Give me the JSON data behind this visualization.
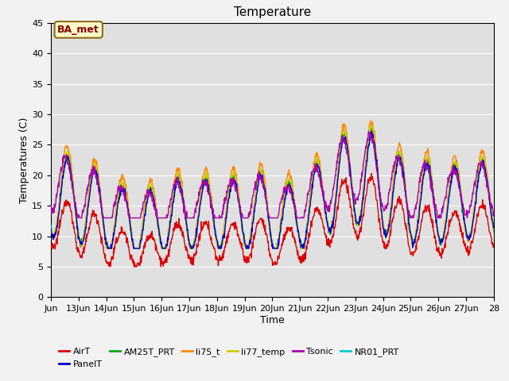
{
  "title": "Temperature",
  "xlabel": "Time",
  "ylabel": "Temperatures (C)",
  "annotation": "BA_met",
  "ylim": [
    0,
    45
  ],
  "yticks": [
    0,
    5,
    10,
    15,
    20,
    25,
    30,
    35,
    40,
    45
  ],
  "x_labels": [
    "Jun",
    "13Jun",
    "14Jun",
    "15Jun",
    "16Jun",
    "17Jun",
    "18Jun",
    "19Jun",
    "20Jun",
    "21Jun",
    "22Jun",
    "23Jun",
    "24Jun",
    "25Jun",
    "26Jun",
    "27Jun",
    "28"
  ],
  "series_colors": {
    "AirT": "#dd0000",
    "PanelT": "#0000cc",
    "AM25T_PRT": "#00aa00",
    "li75_t": "#ff8800",
    "li77_temp": "#cccc00",
    "Tsonic": "#aa00aa",
    "NR01_PRT": "#00cccc"
  },
  "background_color": "#e0e0e0",
  "fig_background": "#f2f2f2",
  "grid_color": "#ffffff",
  "annotation_bg": "#ffffcc",
  "annotation_border": "#8b6914",
  "annotation_text_color": "#8b0000",
  "line_width": 1.0,
  "legend_fontsize": 8,
  "title_fontsize": 11,
  "axis_fontsize": 9,
  "tick_fontsize": 8
}
